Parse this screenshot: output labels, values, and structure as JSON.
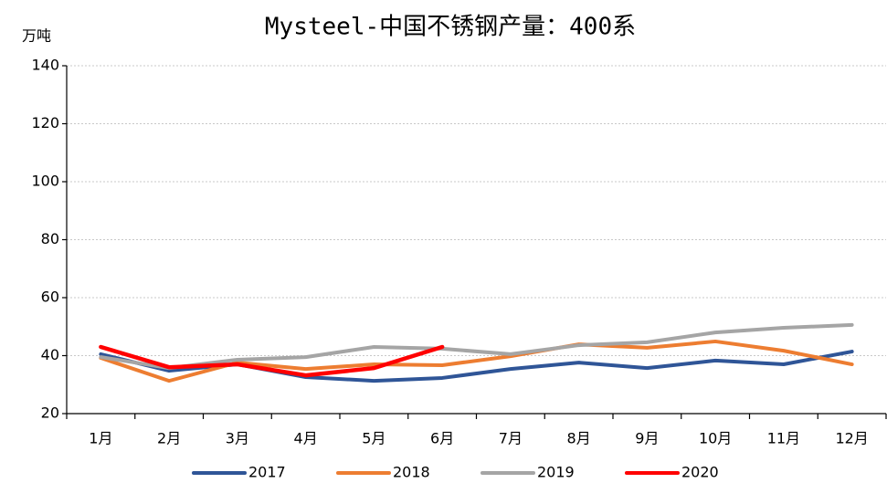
{
  "chart_data": {
    "type": "line",
    "title": "Mysteel-中国不锈钢产量：400系",
    "y_label": "万吨",
    "categories": [
      "1月",
      "2月",
      "3月",
      "4月",
      "5月",
      "6月",
      "7月",
      "8月",
      "9月",
      "10月",
      "11月",
      "12月"
    ],
    "series": [
      {
        "name": "2017",
        "color": "#2f5597",
        "values": [
          40.5,
          34.8,
          37,
          32.6,
          31.3,
          32.3,
          35.4,
          37.6,
          35.7,
          38.3,
          37,
          41.4
        ]
      },
      {
        "name": "2018",
        "color": "#ed7d31",
        "values": [
          39.2,
          31.3,
          37.6,
          35.4,
          37,
          36.7,
          39.8,
          43.9,
          42.7,
          44.9,
          41.7,
          37
        ]
      },
      {
        "name": "2019",
        "color": "#a5a5a5",
        "values": [
          39.5,
          35.7,
          38.6,
          39.5,
          43,
          42.4,
          40.5,
          43.6,
          44.6,
          48,
          49.6,
          50.6
        ]
      },
      {
        "name": "2020",
        "color": "#ff0000",
        "values": [
          43,
          36,
          37,
          33.2,
          35.7,
          43,
          null,
          null,
          null,
          null,
          null,
          null
        ]
      }
    ],
    "ylim": [
      20,
      140
    ],
    "yticks": [
      20,
      40,
      60,
      80,
      100,
      120,
      140
    ],
    "grid": true,
    "legend": "bottom"
  }
}
